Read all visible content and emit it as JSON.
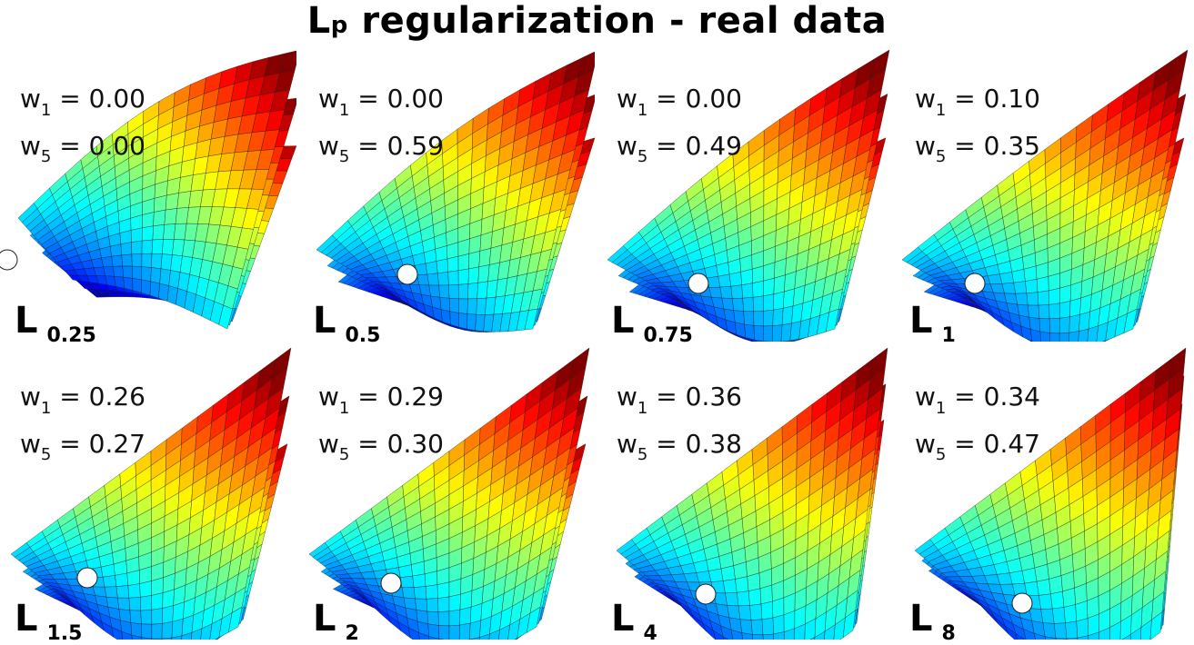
{
  "title": {
    "main": "L",
    "subscript": "p",
    "rest": "regularization - real data"
  },
  "weight_labels": {
    "w1": "w",
    "w1_sub": "1",
    "w5": "w",
    "w5_sub": "5",
    "eq": "="
  },
  "norm_letter": "L",
  "panels": [
    {
      "p": "0.25",
      "w1": "0.00",
      "w5": "0.00"
    },
    {
      "p": "0.5",
      "w1": "0.00",
      "w5": "0.59"
    },
    {
      "p": "0.75",
      "w1": "0.00",
      "w5": "0.49"
    },
    {
      "p": "1",
      "w1": "0.10",
      "w5": "0.35"
    },
    {
      "p": "1.5",
      "w1": "0.26",
      "w5": "0.27"
    },
    {
      "p": "2",
      "w1": "0.29",
      "w5": "0.30"
    },
    {
      "p": "4",
      "w1": "0.36",
      "w5": "0.38"
    },
    {
      "p": "8",
      "w1": "0.34",
      "w5": "0.47"
    }
  ],
  "colors": {
    "colormap": "jet",
    "minimum_marker": "#ffffff",
    "text": "#000000"
  }
}
